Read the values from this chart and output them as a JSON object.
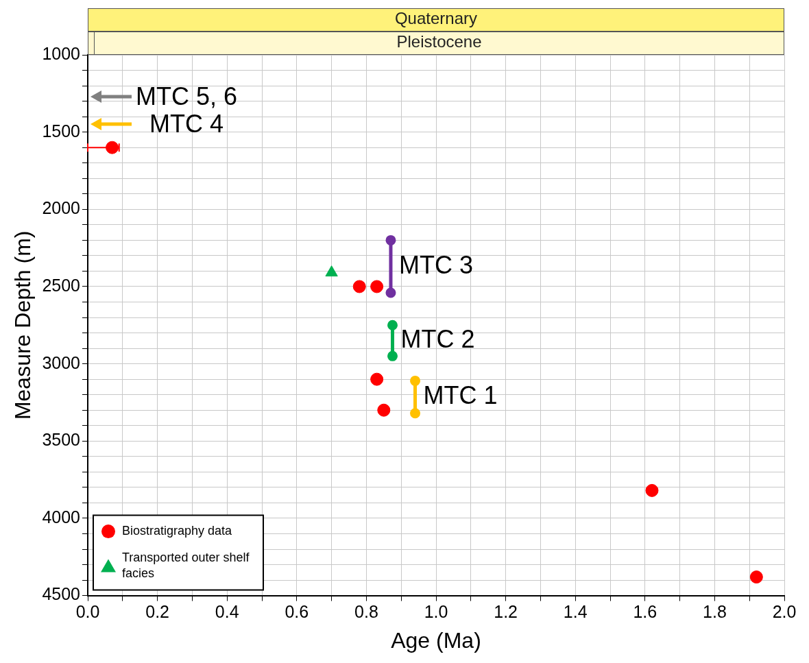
{
  "chart_data": {
    "type": "scatter",
    "xlabel": "Age (Ma)",
    "ylabel": "Measure Depth (m)",
    "xlim": [
      0,
      2.0
    ],
    "ylim": [
      4500,
      1000
    ],
    "xticks": [
      {
        "value": 0,
        "label": "0.0"
      },
      {
        "value": 0.1,
        "label": null
      },
      {
        "value": 0.2,
        "label": "0.2"
      },
      {
        "value": 0.3,
        "label": null
      },
      {
        "value": 0.4,
        "label": "0.4"
      },
      {
        "value": 0.5,
        "label": null
      },
      {
        "value": 0.6,
        "label": "0.6"
      },
      {
        "value": 0.7,
        "label": null
      },
      {
        "value": 0.8,
        "label": "0.8"
      },
      {
        "value": 0.9,
        "label": null
      },
      {
        "value": 1.0,
        "label": "1.0"
      },
      {
        "value": 1.1,
        "label": null
      },
      {
        "value": 1.2,
        "label": "1.2"
      },
      {
        "value": 1.3,
        "label": null
      },
      {
        "value": 1.4,
        "label": "1.4"
      },
      {
        "value": 1.5,
        "label": null
      },
      {
        "value": 1.6,
        "label": "1.6"
      },
      {
        "value": 1.7,
        "label": null
      },
      {
        "value": 1.8,
        "label": "1.8"
      },
      {
        "value": 1.9,
        "label": null
      },
      {
        "value": 2.0,
        "label": "2.0"
      }
    ],
    "yticks": [
      1000,
      {
        "value": 1100,
        "label": null
      },
      {
        "value": 1200,
        "label": null
      },
      {
        "value": 1300,
        "label": null
      },
      {
        "value": 1400,
        "label": null
      },
      1500,
      {
        "value": 1600,
        "label": null
      },
      {
        "value": 1700,
        "label": null
      },
      {
        "value": 1800,
        "label": null
      },
      {
        "value": 1900,
        "label": null
      },
      2000,
      {
        "value": 2100,
        "label": null
      },
      {
        "value": 2200,
        "label": null
      },
      {
        "value": 2300,
        "label": null
      },
      {
        "value": 2400,
        "label": null
      },
      2500,
      {
        "value": 2600,
        "label": null
      },
      {
        "value": 2700,
        "label": null
      },
      {
        "value": 2800,
        "label": null
      },
      {
        "value": 2900,
        "label": null
      },
      3000,
      {
        "value": 3100,
        "label": null
      },
      {
        "value": 3200,
        "label": null
      },
      {
        "value": 3300,
        "label": null
      },
      {
        "value": 3400,
        "label": null
      },
      3500,
      {
        "value": 3600,
        "label": null
      },
      {
        "value": 3700,
        "label": null
      },
      {
        "value": 3800,
        "label": null
      },
      {
        "value": 3900,
        "label": null
      },
      4000,
      {
        "value": 4100,
        "label": null
      },
      {
        "value": 4200,
        "label": null
      },
      {
        "value": 4300,
        "label": null
      },
      {
        "value": 4400,
        "label": null
      },
      4500
    ],
    "grid": true,
    "legend": "bottom left",
    "series": [
      {
        "name": "Biostratigraphy data",
        "type": "scatter",
        "marker": "circle",
        "color": "#ff0000",
        "x": [
          0.07,
          0.78,
          0.83,
          0.83,
          0.85,
          1.62,
          1.92
        ],
        "values": [
          1600,
          2500,
          2500,
          3100,
          3300,
          3820,
          4380
        ],
        "xerrors": [
          [
            0,
            0.09
          ],
          null,
          null,
          null,
          null,
          null,
          null
        ]
      },
      {
        "name": "Transported outer shelf facies",
        "type": "scatter",
        "marker": "triangle",
        "color": "#00b050",
        "x": [
          0.7
        ],
        "values": [
          2410
        ]
      },
      {
        "name": "MTC 3",
        "type": "line",
        "marker": "circle",
        "color": "#7030a0",
        "x": [
          0.87,
          0.87
        ],
        "values": [
          2200,
          2540
        ]
      },
      {
        "name": "MTC 2",
        "type": "line",
        "marker": "circle",
        "color": "#00b050",
        "x": [
          0.875,
          0.875
        ],
        "values": [
          2750,
          2950
        ]
      },
      {
        "name": "MTC 1",
        "type": "line",
        "marker": "circle",
        "color": "#ffc000",
        "x": [
          0.94,
          0.94
        ],
        "values": [
          3110,
          3320
        ]
      }
    ],
    "annotations": [
      "Quaternary",
      "Pleistocene",
      "MTC 5, 6",
      "MTC 4"
    ]
  }
}
